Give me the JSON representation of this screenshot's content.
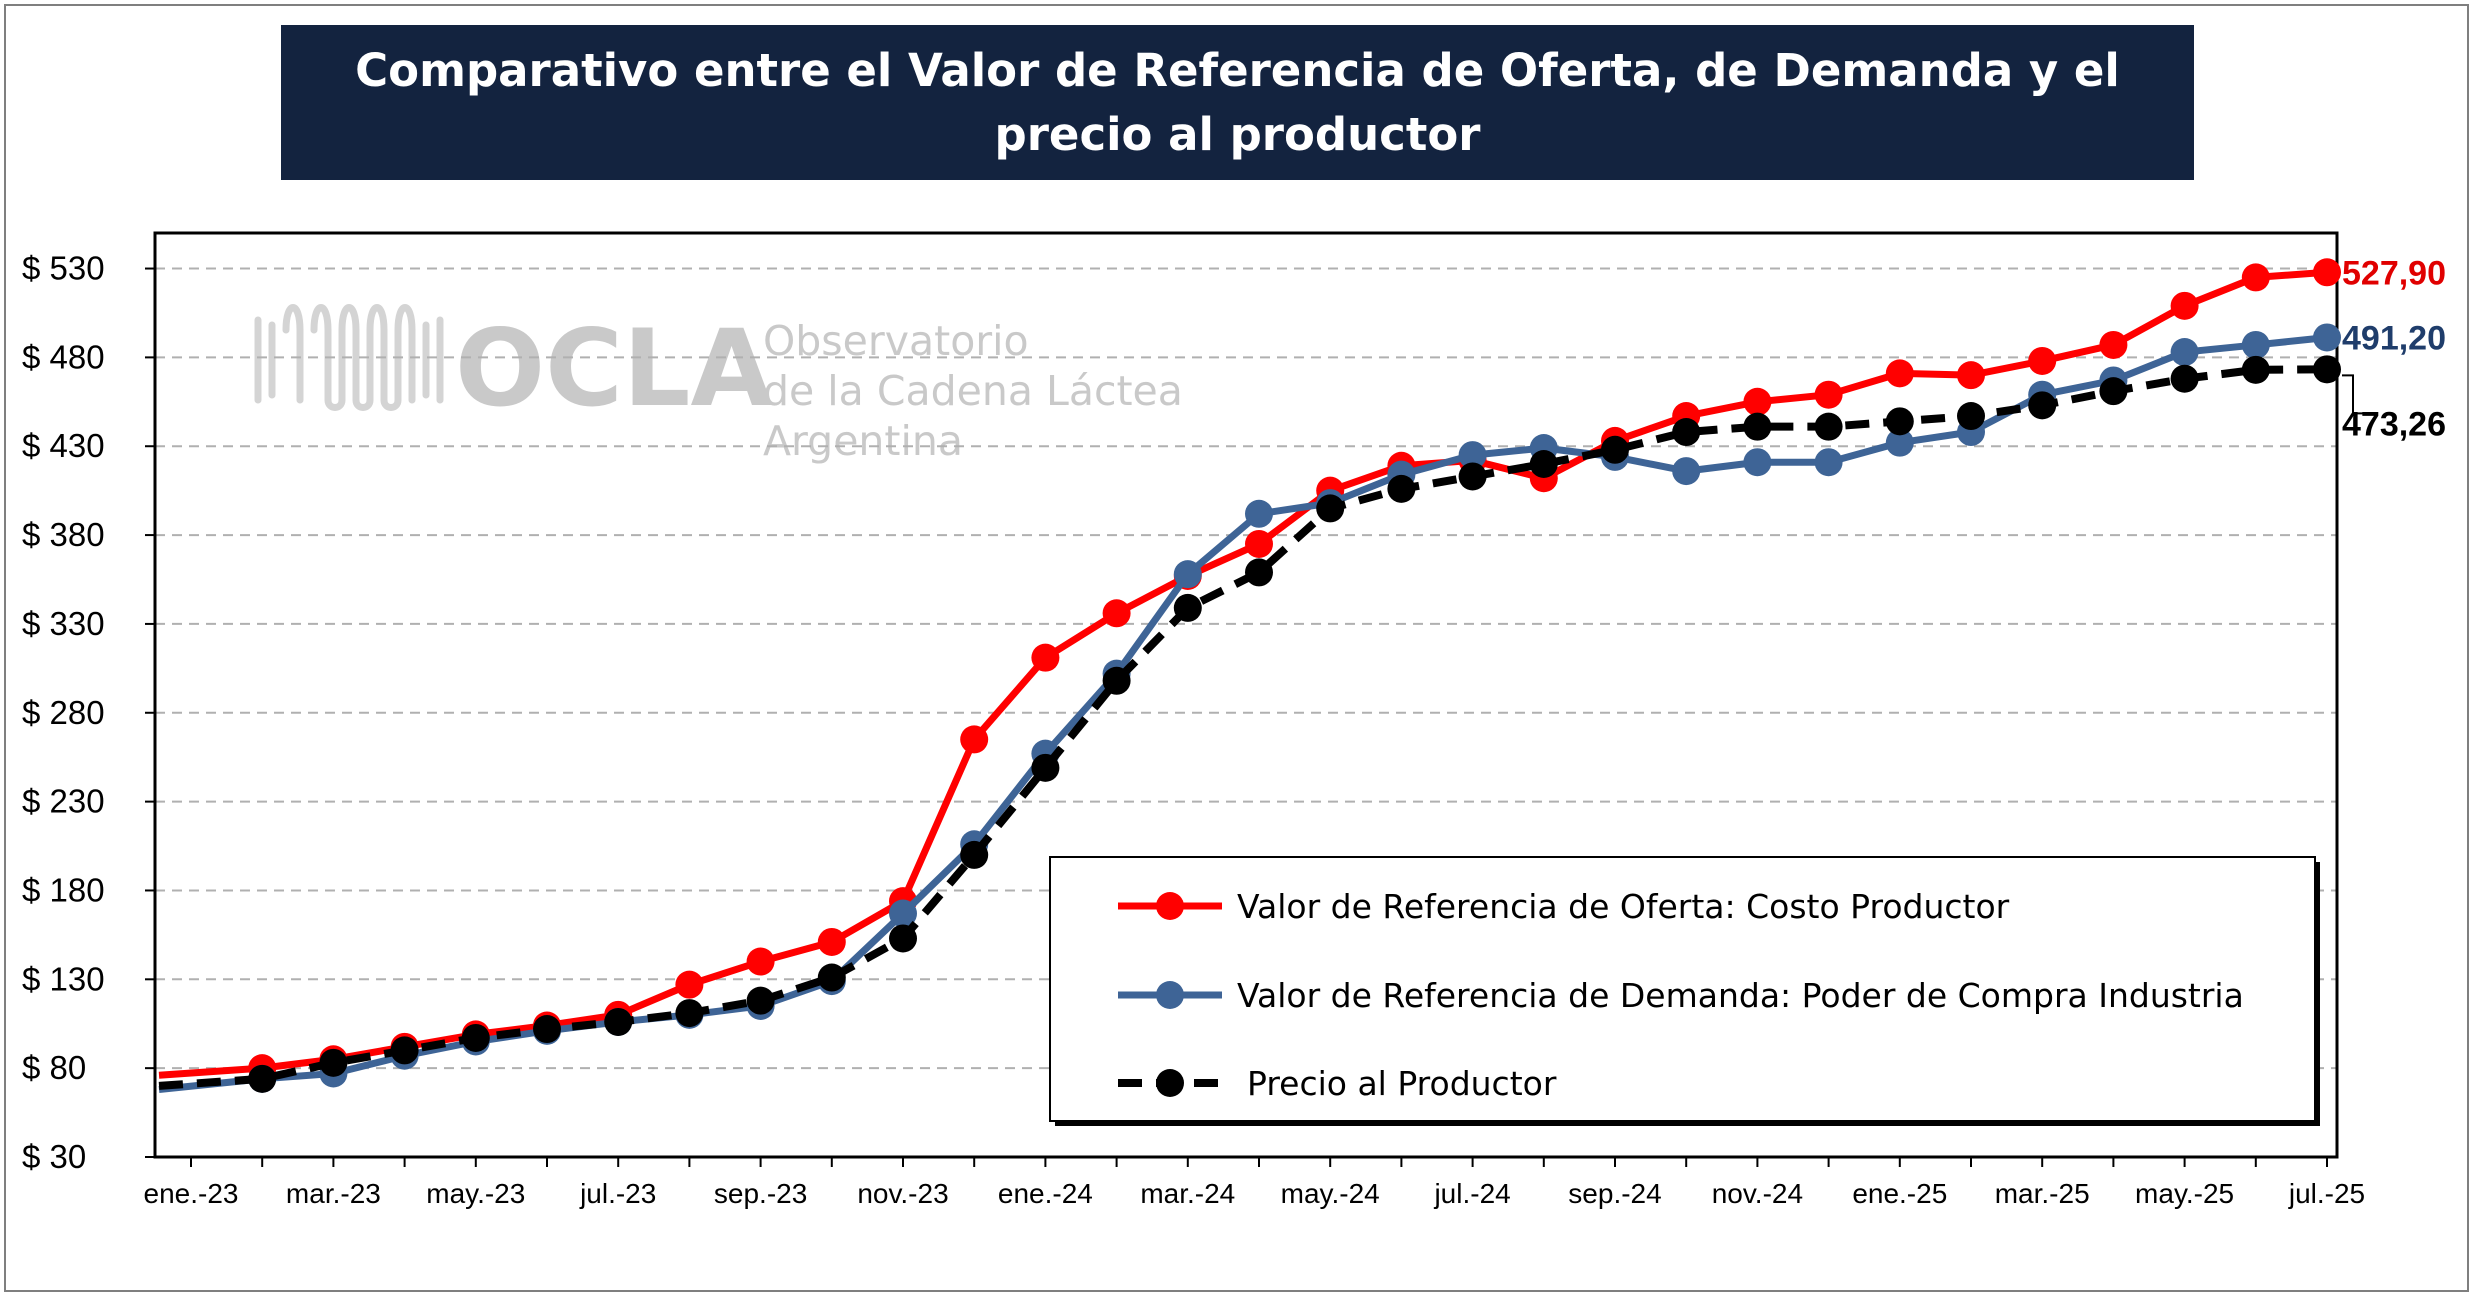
{
  "title": "Comparativo entre el Valor de Referencia de Oferta, de Demanda y el precio al productor",
  "watermark": {
    "brand": "OCLA",
    "line1": "Observatorio",
    "line2": "de la Cadena Láctea",
    "line3": "Argentina"
  },
  "chart_data": {
    "type": "line",
    "x": [
      "ene.-23",
      "feb.-23",
      "mar.-23",
      "abr.-23",
      "may.-23",
      "jun.-23",
      "jul.-23",
      "ago.-23",
      "sep.-23",
      "oct.-23",
      "nov.-23",
      "dic.-23",
      "ene.-24",
      "feb.-24",
      "mar.-24",
      "abr.-24",
      "may.-24",
      "jun.-24",
      "jul.-24",
      "ago.-24",
      "sep.-24",
      "oct.-24",
      "nov.-24",
      "dic.-24",
      "ene.-25",
      "feb.-25",
      "mar.-25",
      "abr.-25",
      "may.-25",
      "jun.-25",
      "jul.-25"
    ],
    "x_tick_labels": [
      "ene.-23",
      "mar.-23",
      "may.-23",
      "jul.-23",
      "sep.-23",
      "nov.-23",
      "ene.-24",
      "mar.-24",
      "may.-24",
      "jul.-24",
      "sep.-24",
      "nov.-24",
      "ene.-25",
      "mar.-25",
      "may.-25",
      "jul.-25"
    ],
    "y_tick_labels": [
      "$ 30",
      "$ 80",
      "$ 130",
      "$ 180",
      "$ 230",
      "$ 280",
      "$ 330",
      "$ 380",
      "$ 430",
      "$ 480",
      "$ 530"
    ],
    "ylim": [
      30,
      550
    ],
    "y_ticks": [
      30,
      80,
      130,
      180,
      230,
      280,
      330,
      380,
      430,
      480,
      530
    ],
    "grid": "horizontal dashed",
    "legend_position": "bottom-right",
    "series": [
      {
        "name": "Valor de Referencia de Oferta: Costo Productor",
        "color": "#ff0000",
        "style": "solid",
        "values": [
          76,
          80,
          85,
          92,
          99,
          104,
          110,
          127,
          140,
          151,
          174,
          265,
          311,
          336,
          357,
          375,
          405,
          419,
          422,
          412,
          433,
          447,
          455,
          459,
          471,
          470,
          478,
          487,
          509,
          525,
          527.9
        ]
      },
      {
        "name": "Valor de Referencia de Demanda: Poder de Compra Industria",
        "color": "#3e6496",
        "style": "solid",
        "values": [
          68,
          74,
          77,
          87,
          95,
          101,
          106,
          110,
          115,
          129,
          167,
          206,
          257,
          302,
          358,
          392,
          398,
          414,
          425,
          429,
          424,
          416,
          421,
          421,
          432,
          438,
          459,
          467,
          483,
          487,
          491.2
        ]
      },
      {
        "name": "Precio al Productor",
        "color": "#000000",
        "style": "dashed",
        "values": [
          70,
          74,
          83,
          90,
          97,
          102,
          106,
          111,
          118,
          131,
          153,
          200,
          249,
          298,
          339,
          359,
          395,
          406,
          413,
          420,
          428,
          438,
          441,
          441,
          444,
          447,
          453,
          461,
          468,
          473,
          473.26
        ]
      }
    ],
    "end_labels": [
      "527,90",
      "491,20",
      "473,26"
    ]
  }
}
